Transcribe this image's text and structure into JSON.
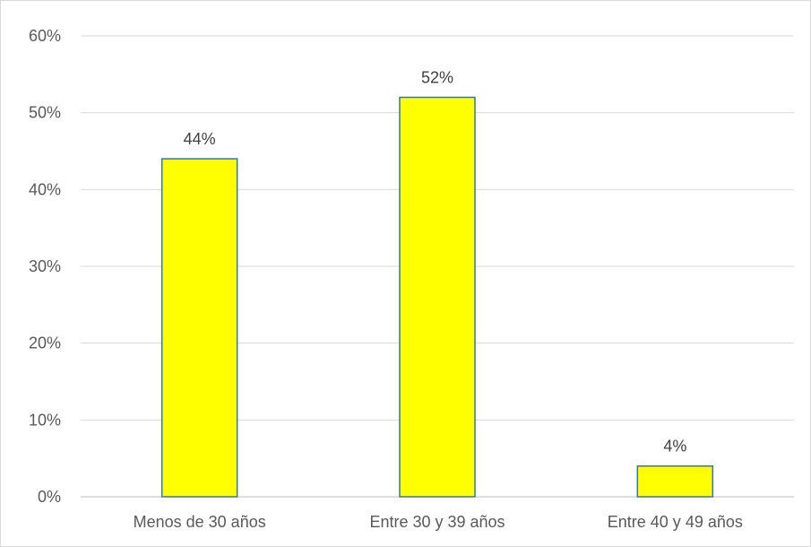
{
  "chart_data": {
    "type": "bar",
    "categories": [
      "Menos de 30 años",
      "Entre 30 y 39 años",
      "Entre 40 y 49 años"
    ],
    "values": [
      44,
      52,
      4
    ],
    "data_labels": [
      "44%",
      "52%",
      "4%"
    ],
    "title": "",
    "xlabel": "",
    "ylabel": "",
    "ylim": [
      0,
      60
    ],
    "yticks": [
      0,
      10,
      20,
      30,
      40,
      50,
      60
    ],
    "ytick_labels": [
      "0%",
      "10%",
      "20%",
      "30%",
      "40%",
      "50%",
      "60%"
    ],
    "grid": true,
    "legend": "none",
    "colors": {
      "bar_fill": "#ffff00",
      "bar_stroke": "#2e75b6",
      "gridline": "#d9d9d9",
      "axis_line": "#bfbfbf",
      "text": "#595959",
      "data_label_text": "#404040"
    }
  }
}
